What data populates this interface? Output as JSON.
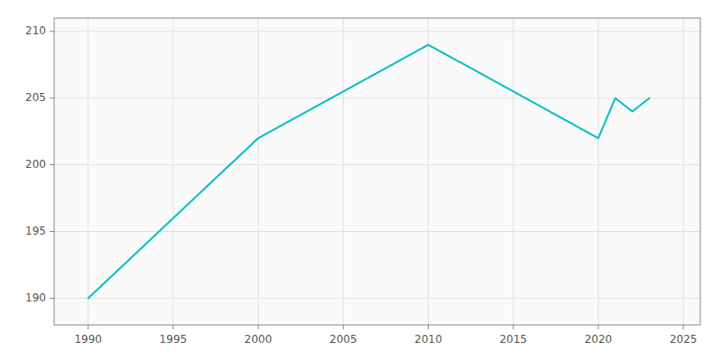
{
  "chart_data": {
    "type": "line",
    "x": [
      1990,
      2000,
      2010,
      2020,
      2021,
      2022,
      2023
    ],
    "values": [
      190,
      202,
      209,
      202,
      205,
      204,
      205
    ],
    "color": "#00BFBF",
    "xlim": [
      1988,
      2026
    ],
    "ylim": [
      188,
      211
    ],
    "xticks": [
      1990,
      1995,
      2000,
      2005,
      2010,
      2015,
      2020,
      2025
    ],
    "yticks": [
      190,
      195,
      200,
      205,
      210
    ],
    "grid": true
  }
}
